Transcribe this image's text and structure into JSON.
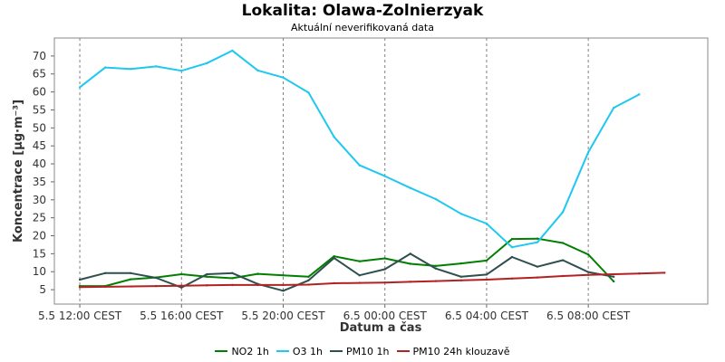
{
  "chart_data": {
    "type": "line",
    "title": "Lokalita: Olawa-Zolnierzyak",
    "subtitle": "Aktuální neverifikovaná data",
    "xlabel": "Datum a čas",
    "ylabel": "Koncentrace [µg·m⁻³]",
    "ylim": [
      1,
      75
    ],
    "y_ticks": [
      5,
      10,
      15,
      20,
      25,
      30,
      35,
      40,
      45,
      50,
      55,
      60,
      65,
      70
    ],
    "x_tick_labels": [
      "5.5 12:00 CEST",
      "5.5 16:00 CEST",
      "5.5 20:00 CEST",
      "6.5 00:00 CEST",
      "6.5 04:00 CEST",
      "6.5 08:00 CEST"
    ],
    "x_tick_hours": [
      0,
      4,
      8,
      12,
      16,
      20
    ],
    "xlim_hours": [
      -1,
      24.7
    ],
    "grid": true,
    "legend_position": "bottom",
    "series": [
      {
        "name": "NO2 1h",
        "color": "#008000",
        "x_hours": [
          0,
          1,
          2,
          3,
          4,
          5,
          6,
          7,
          8,
          9,
          10,
          11,
          12,
          13,
          14,
          15,
          16,
          17,
          18,
          19,
          20,
          21
        ],
        "values": [
          6,
          6,
          7.9,
          8.4,
          9.3,
          8.6,
          8.2,
          9.4,
          9,
          8.6,
          14.3,
          12.9,
          13.7,
          12.2,
          11.6,
          12.3,
          13.1,
          19.1,
          19.2,
          18,
          14.8,
          7.3
        ]
      },
      {
        "name": "O3 1h",
        "color": "#1ec8f0",
        "x_hours": [
          0,
          1,
          2,
          3,
          4,
          5,
          6,
          7,
          8,
          9,
          10,
          11,
          12,
          13,
          14,
          15,
          16,
          17,
          18,
          19,
          20,
          21,
          22
        ],
        "values": [
          61.3,
          66.8,
          66.4,
          67.1,
          65.9,
          68,
          71.5,
          66,
          64,
          59.8,
          47.5,
          39.6,
          36.6,
          33.3,
          30.2,
          26.1,
          23.4,
          16.8,
          18.2,
          26.6,
          43.2,
          55.6,
          59.3
        ]
      },
      {
        "name": "PM10 1h",
        "color": "#2f4f4f",
        "x_hours": [
          0,
          1,
          2,
          3,
          4,
          5,
          6,
          7,
          8,
          9,
          10,
          11,
          12,
          13,
          14,
          15,
          16,
          17,
          18,
          19,
          20,
          21
        ],
        "values": [
          7.8,
          9.6,
          9.6,
          8.3,
          5.6,
          9.3,
          9.6,
          6.6,
          4.7,
          7.6,
          13.8,
          9,
          10.7,
          15,
          10.9,
          8.6,
          9.2,
          14.1,
          11.4,
          13.2,
          9.9,
          8.6
        ]
      },
      {
        "name": "PM10 24h klouzavě",
        "color": "#b22222",
        "x_hours": [
          0,
          1,
          2,
          3,
          4,
          5,
          6,
          7,
          8,
          9,
          10,
          11,
          12,
          13,
          14,
          15,
          16,
          17,
          18,
          19,
          20,
          21,
          22,
          23
        ],
        "values": [
          5.7,
          5.8,
          5.9,
          6,
          6.1,
          6.2,
          6.3,
          6.3,
          6.3,
          6.4,
          6.8,
          6.9,
          7,
          7.2,
          7.4,
          7.6,
          7.8,
          8.1,
          8.4,
          8.8,
          9.1,
          9.3,
          9.5,
          9.7
        ]
      }
    ]
  }
}
